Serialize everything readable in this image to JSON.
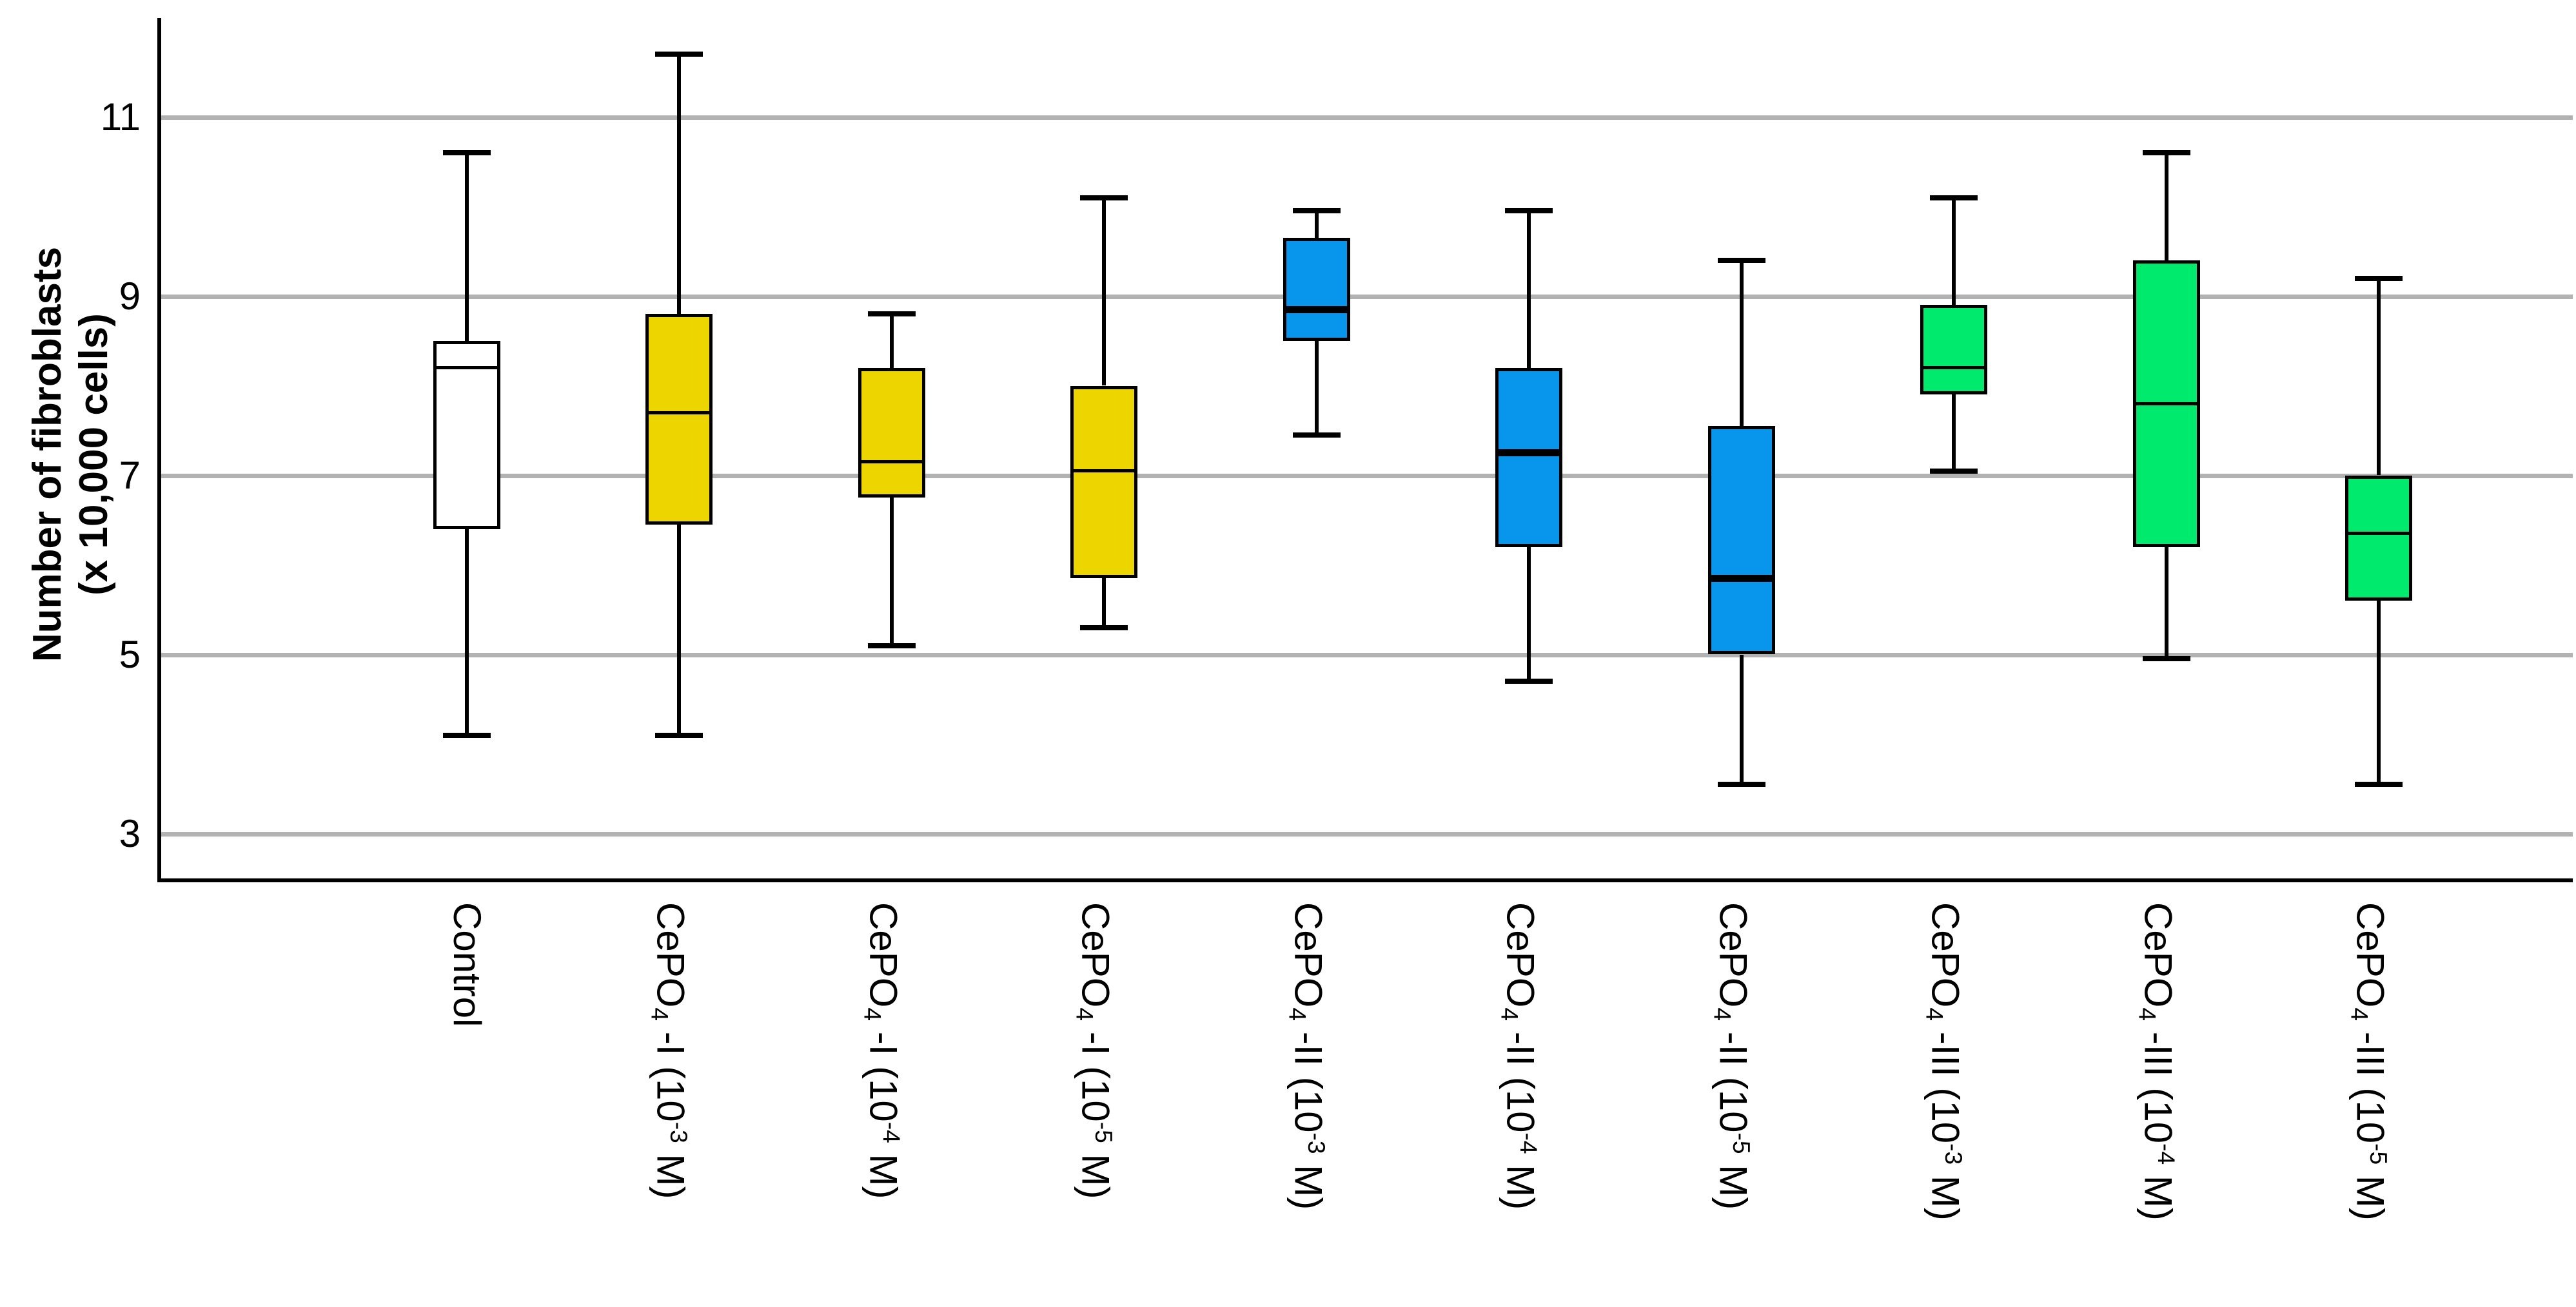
{
  "chart_data": {
    "type": "boxplot",
    "title": "",
    "ylabel_line1": "Number of fibroblasts",
    "ylabel_line2": "(x 10,000 cells)",
    "xlabel": "",
    "yticks": [
      11,
      9,
      7,
      5,
      3
    ],
    "ylim": [
      2.5,
      12.1
    ],
    "grid": "horizontal",
    "legend": "none",
    "series": [
      {
        "name": "Control",
        "label_parts": [
          {
            "t": "Control"
          }
        ],
        "color": "#FFFFFF",
        "median_thick": false,
        "min": 4.1,
        "q1": 6.4,
        "median": 8.2,
        "q3": 8.5,
        "max": 10.6
      },
      {
        "name": "CePO4 -I (10-3 M)",
        "label_parts": [
          {
            "t": "CePO"
          },
          {
            "t": "4",
            "s": "sub"
          },
          {
            "t": " -I (10"
          },
          {
            "t": "-3",
            "s": "sup"
          },
          {
            "t": " M)"
          }
        ],
        "color": "#EDD500",
        "median_thick": false,
        "min": 4.1,
        "q1": 6.45,
        "median": 7.7,
        "q3": 8.8,
        "max": 11.7
      },
      {
        "name": "CePO4 -I (10-4 M)",
        "label_parts": [
          {
            "t": "CePO"
          },
          {
            "t": "4",
            "s": "sub"
          },
          {
            "t": " -I (10"
          },
          {
            "t": "-4",
            "s": "sup"
          },
          {
            "t": " M)"
          }
        ],
        "color": "#EDD500",
        "median_thick": false,
        "min": 5.1,
        "q1": 6.75,
        "median": 7.15,
        "q3": 8.2,
        "max": 8.8
      },
      {
        "name": "CePO4 -I (10-5 M)",
        "label_parts": [
          {
            "t": "CePO"
          },
          {
            "t": "4",
            "s": "sub"
          },
          {
            "t": " -I (10"
          },
          {
            "t": "-5",
            "s": "sup"
          },
          {
            "t": " M)"
          }
        ],
        "color": "#EDD500",
        "median_thick": false,
        "min": 5.3,
        "q1": 5.85,
        "median": 7.05,
        "q3": 8.0,
        "max": 10.1
      },
      {
        "name": "CePO4 -II (10-3 M)",
        "label_parts": [
          {
            "t": "CePO"
          },
          {
            "t": "4",
            "s": "sub"
          },
          {
            "t": " -II (10"
          },
          {
            "t": "-3",
            "s": "sup"
          },
          {
            "t": " M)"
          }
        ],
        "color": "#0896EC",
        "median_thick": true,
        "min": 7.45,
        "q1": 8.5,
        "median": 8.85,
        "q3": 9.65,
        "max": 9.95
      },
      {
        "name": "CePO4 -II (10-4 M)",
        "label_parts": [
          {
            "t": "CePO"
          },
          {
            "t": "4",
            "s": "sub"
          },
          {
            "t": " -II (10"
          },
          {
            "t": "-4",
            "s": "sup"
          },
          {
            "t": " M)"
          }
        ],
        "color": "#0896EC",
        "median_thick": true,
        "min": 4.7,
        "q1": 6.2,
        "median": 7.25,
        "q3": 8.2,
        "max": 9.95
      },
      {
        "name": "CePO4 -II (10-5 M)",
        "label_parts": [
          {
            "t": "CePO"
          },
          {
            "t": "4",
            "s": "sub"
          },
          {
            "t": " -II (10"
          },
          {
            "t": "-5",
            "s": "sup"
          },
          {
            "t": " M)"
          }
        ],
        "color": "#0896EC",
        "median_thick": true,
        "min": 3.55,
        "q1": 5.0,
        "median": 5.85,
        "q3": 7.55,
        "max": 9.4
      },
      {
        "name": "CePO4 -III (10-3 M)",
        "label_parts": [
          {
            "t": "CePO"
          },
          {
            "t": "4",
            "s": "sub"
          },
          {
            "t": " -III (10"
          },
          {
            "t": "-3",
            "s": "sup"
          },
          {
            "t": " M)"
          }
        ],
        "color": "#00EB6E",
        "median_thick": false,
        "min": 7.05,
        "q1": 7.9,
        "median": 8.2,
        "q3": 8.9,
        "max": 10.1
      },
      {
        "name": "CePO4 -III (10-4 M)",
        "label_parts": [
          {
            "t": "CePO"
          },
          {
            "t": "4",
            "s": "sub"
          },
          {
            "t": " -III (10"
          },
          {
            "t": "-4",
            "s": "sup"
          },
          {
            "t": " M)"
          }
        ],
        "color": "#00EB6E",
        "median_thick": false,
        "min": 4.95,
        "q1": 6.2,
        "median": 7.8,
        "q3": 9.4,
        "max": 10.6
      },
      {
        "name": "CePO4 -III (10-5 M)",
        "label_parts": [
          {
            "t": "CePO"
          },
          {
            "t": "4",
            "s": "sub"
          },
          {
            "t": " -III (10"
          },
          {
            "t": "-5",
            "s": "sup"
          },
          {
            "t": " M)"
          }
        ],
        "color": "#00EB6E",
        "median_thick": false,
        "min": 3.55,
        "q1": 5.6,
        "median": 6.35,
        "q3": 7.0,
        "max": 9.2
      }
    ]
  },
  "colors": {
    "background": "#FFFFFF",
    "grid": "#B2B2B2",
    "axis": "#000000",
    "box_border": "#000000",
    "median": "#000000",
    "control_fill": "#FFFFFF",
    "cepo1_fill": "#EDD500",
    "cepo2_fill": "#0896EC",
    "cepo3_fill": "#00EB6E"
  }
}
